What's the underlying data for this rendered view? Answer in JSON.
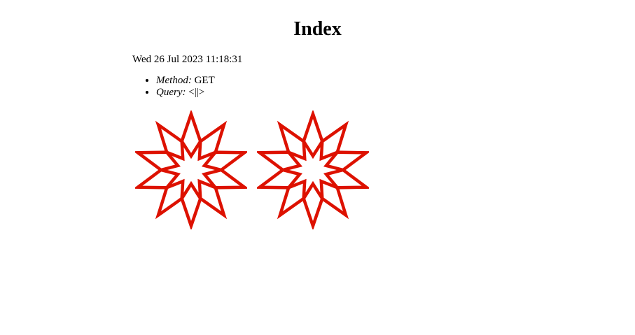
{
  "page": {
    "title": "Index",
    "date": "Wed 26 Jul 2023 11:18:31",
    "info": [
      {
        "key": "Method:",
        "value": "GET"
      },
      {
        "key": "Query:",
        "value": "<||>"
      }
    ]
  },
  "logo_color": "#dd1100",
  "logos": [
    {
      "icon": "wolfram-spikey-icon"
    },
    {
      "icon": "wolfram-spikey-icon"
    }
  ]
}
